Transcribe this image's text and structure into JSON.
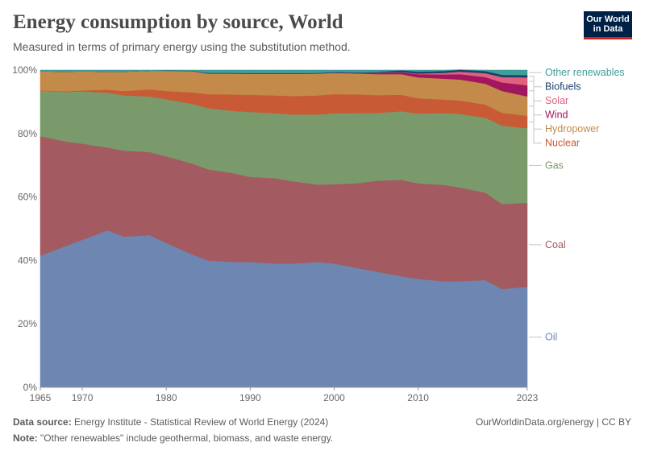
{
  "header": {
    "title": "Energy consumption by source, World",
    "subtitle": "Measured in terms of primary energy using the substitution method.",
    "logo_line1": "Our World",
    "logo_line2": "in Data"
  },
  "footer": {
    "source_label": "Data source:",
    "source_text": "Energy Institute - Statistical Review of World Energy (2024)",
    "credit": "OurWorldinData.org/energy | CC BY",
    "note_label": "Note:",
    "note_text": "\"Other renewables\" include geothermal, biomass, and waste energy."
  },
  "chart_data": {
    "type": "area",
    "stacked": true,
    "x": [
      1965,
      1968,
      1970,
      1973,
      1975,
      1978,
      1980,
      1983,
      1985,
      1988,
      1990,
      1993,
      1995,
      1998,
      2000,
      2003,
      2005,
      2008,
      2010,
      2013,
      2015,
      2018,
      2020,
      2023
    ],
    "xticks": [
      1965,
      1970,
      1980,
      1990,
      2000,
      2010,
      2023
    ],
    "xtick_labels": [
      "1965",
      "1970",
      "1980",
      "1990",
      "2000",
      "2010",
      "2023"
    ],
    "ylim": [
      0,
      100
    ],
    "yticks": [
      0,
      20,
      40,
      60,
      80,
      100
    ],
    "ytick_labels": [
      "0%",
      "20%",
      "40%",
      "60%",
      "80%",
      "100%"
    ],
    "grid": true,
    "legend": "right",
    "series": [
      {
        "name": "Oil",
        "color": "#6d87b2",
        "values": [
          41.5,
          44.5,
          46.5,
          49.5,
          47.5,
          48,
          45.5,
          42,
          40,
          39.5,
          39.5,
          39,
          39,
          39.5,
          39,
          37.5,
          36.5,
          35,
          34.2,
          33.4,
          33.4,
          33.8,
          31,
          31.7
        ]
      },
      {
        "name": "Coal",
        "color": "#a35a61",
        "values": [
          37.7,
          33,
          30.3,
          26.1,
          27.1,
          26.2,
          27.3,
          28.6,
          28.7,
          28,
          26.8,
          26.9,
          26,
          24.4,
          25,
          26.9,
          28.6,
          30.4,
          30.1,
          30.4,
          29.6,
          27.6,
          26.8,
          26.5
        ]
      },
      {
        "name": "Gas",
        "color": "#7a9a6b",
        "values": [
          14.3,
          15.6,
          16.5,
          17.3,
          17.4,
          17.5,
          18,
          18.8,
          19.3,
          19.6,
          20.5,
          20.5,
          21,
          22.1,
          22.4,
          22.1,
          21.4,
          21.6,
          22,
          22.7,
          23.2,
          23.6,
          24.7,
          23.5
        ]
      },
      {
        "name": "Nuclear",
        "color": "#c85a35",
        "values": [
          0.1,
          0.2,
          0.3,
          0.9,
          1.4,
          2.2,
          2.6,
          3.6,
          4.4,
          5.2,
          5.4,
          5.6,
          5.8,
          6,
          6,
          5.8,
          5.6,
          5.2,
          4.8,
          4.2,
          4.2,
          4.1,
          4,
          3.9
        ]
      },
      {
        "name": "Hydropower",
        "color": "#c38a49",
        "values": [
          6,
          6.2,
          6,
          5.7,
          6.1,
          5.9,
          6.4,
          6.7,
          6.5,
          6.6,
          6.6,
          6.8,
          7,
          6.9,
          6.7,
          6.6,
          6.6,
          6.5,
          6.6,
          6.6,
          6.6,
          6.6,
          6.9,
          6.1
        ]
      },
      {
        "name": "Wind",
        "color": "#a2155f",
        "values": [
          0,
          0,
          0,
          0,
          0,
          0,
          0,
          0,
          0,
          0,
          0,
          0,
          0,
          0,
          0.1,
          0.2,
          0.3,
          0.6,
          1,
          1.3,
          1.7,
          2.1,
          2.7,
          3.5
        ]
      },
      {
        "name": "Solar",
        "color": "#e0617d",
        "values": [
          0,
          0,
          0,
          0,
          0,
          0,
          0,
          0,
          0,
          0,
          0,
          0,
          0,
          0,
          0,
          0,
          0.1,
          0.1,
          0.2,
          0.5,
          0.8,
          1.2,
          1.7,
          2.5
        ]
      },
      {
        "name": "Biofuels",
        "color": "#1e3f6a",
        "values": [
          0,
          0,
          0,
          0,
          0,
          0,
          0.1,
          0.1,
          0.2,
          0.2,
          0.2,
          0.2,
          0.2,
          0.2,
          0.2,
          0.2,
          0.3,
          0.5,
          0.6,
          0.6,
          0.6,
          0.7,
          0.7,
          0.7
        ]
      },
      {
        "name": "Other renewables",
        "color": "#3f9d9a",
        "values": [
          0.4,
          0.5,
          0.4,
          0.5,
          0.5,
          0.2,
          0.1,
          0.2,
          0.9,
          0.9,
          1,
          1,
          1,
          0.9,
          0.6,
          0.7,
          0.6,
          0.1,
          0.5,
          0.3,
          0,
          0.3,
          1.5,
          1.6
        ]
      }
    ]
  }
}
